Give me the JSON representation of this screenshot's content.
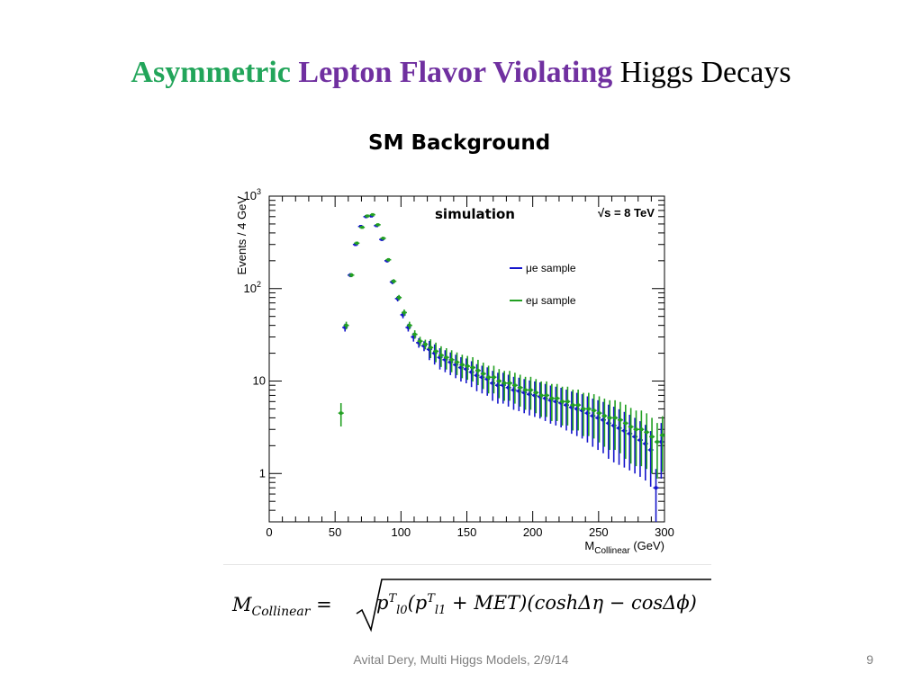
{
  "slide": {
    "title_parts": [
      {
        "text": "Asymmetric",
        "color": "#22a55a"
      },
      {
        "text": "Lepton Flavor Violating",
        "color": "#7030a0"
      },
      {
        "text": "Higgs Decays",
        "color": "#000000"
      }
    ],
    "subtitle": "SM Background",
    "footer": "Avital Dery, Multi Higgs Models, 2/9/14",
    "page_number": "9"
  },
  "formula": {
    "lhs_symbol": "M",
    "lhs_sub": "Collinear",
    "equals": "=",
    "p": "p",
    "T": "T",
    "l0": "l",
    "l0_sub": "0",
    "l1": "l",
    "l1_sub": "1",
    "plus_met": "+ MET",
    "trig": "(coshΔη − cosΔϕ)"
  },
  "chart_data": {
    "type": "scatter",
    "title": "",
    "annotations": [
      "simulation",
      "√s = 8 TeV"
    ],
    "xlabel": "M",
    "xlabel_sub": "Collinear",
    "xlabel_unit": "(GeV)",
    "ylabel": "Events / 4 GeV",
    "xlim": [
      0,
      300
    ],
    "ylim": [
      0.3,
      1000
    ],
    "yscale": "log",
    "x_ticks": [
      0,
      50,
      100,
      150,
      200,
      250,
      300
    ],
    "y_ticks": [
      {
        "value": 1,
        "base": "1",
        "exp": ""
      },
      {
        "value": 10,
        "base": "10",
        "exp": ""
      },
      {
        "value": 100,
        "base": "10",
        "exp": "2"
      },
      {
        "value": 1000,
        "base": "10",
        "exp": "3"
      }
    ],
    "legend_position": "right",
    "colors": {
      "mu_e": "#1515cc",
      "e_mu": "#22a022"
    },
    "series": [
      {
        "name": "μe sample",
        "color": "#1515cc",
        "x": [
          58,
          62,
          66,
          70,
          74,
          78,
          82,
          86,
          90,
          94,
          98,
          102,
          106,
          110,
          114,
          118,
          122,
          126,
          130,
          134,
          138,
          142,
          146,
          150,
          154,
          158,
          162,
          166,
          170,
          174,
          178,
          182,
          186,
          190,
          194,
          198,
          202,
          206,
          210,
          214,
          218,
          222,
          226,
          230,
          234,
          238,
          242,
          246,
          250,
          254,
          258,
          262,
          266,
          270,
          274,
          278,
          282,
          286,
          290,
          294,
          298
        ],
        "y": [
          38,
          140,
          300,
          470,
          600,
          610,
          480,
          340,
          200,
          118,
          78,
          52,
          38,
          30,
          26,
          24,
          22,
          20,
          18,
          17,
          16,
          15,
          14,
          13.5,
          12.5,
          11.5,
          11,
          10.5,
          9.5,
          9,
          9,
          8.5,
          8,
          7.8,
          7.5,
          7.2,
          7,
          6.8,
          6.5,
          6.2,
          6,
          5.8,
          5.5,
          5.2,
          5,
          4.8,
          4.5,
          4.2,
          4,
          3.8,
          3.5,
          3.3,
          3.1,
          2.9,
          2.7,
          2.5,
          2.3,
          2.1,
          1.8,
          0.7,
          2.2
        ]
      },
      {
        "name": "eμ sample",
        "color": "#22a022",
        "x": [
          54,
          58,
          62,
          66,
          70,
          74,
          78,
          82,
          86,
          90,
          94,
          98,
          102,
          106,
          110,
          114,
          118,
          122,
          126,
          130,
          134,
          138,
          142,
          146,
          150,
          154,
          158,
          162,
          166,
          170,
          174,
          178,
          182,
          186,
          190,
          194,
          198,
          202,
          206,
          210,
          214,
          218,
          222,
          226,
          230,
          234,
          238,
          242,
          246,
          250,
          254,
          258,
          262,
          266,
          270,
          274,
          278,
          282,
          286,
          290,
          294,
          298
        ],
        "y": [
          4.5,
          40,
          140,
          310,
          460,
          610,
          630,
          490,
          350,
          205,
          120,
          80,
          55,
          40,
          32,
          27,
          25,
          23,
          21,
          19,
          18,
          17,
          16,
          15,
          14.5,
          14,
          13,
          12,
          11,
          11,
          10,
          9.5,
          9.5,
          9,
          8.5,
          8,
          8,
          7.5,
          7,
          7,
          6.5,
          6.5,
          6,
          6,
          5.5,
          5.5,
          5,
          5,
          4.8,
          4.5,
          4.2,
          4,
          4,
          3.8,
          3.5,
          3.2,
          3,
          3,
          2.8,
          2.5,
          2.2,
          2.6
        ]
      }
    ]
  }
}
